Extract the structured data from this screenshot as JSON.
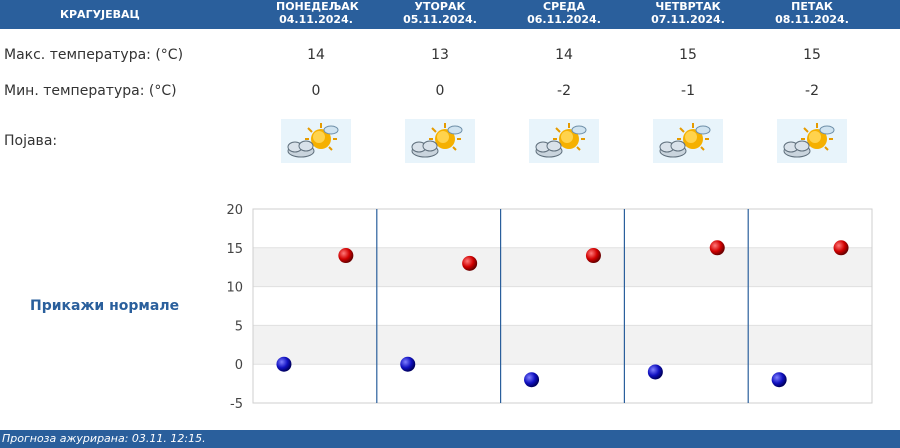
{
  "header": {
    "city": "КРАГУЈЕВАЦ",
    "days": [
      {
        "day": "ПОНЕДЕЉАК",
        "date": "04.11.2024."
      },
      {
        "day": "УТОРАК",
        "date": "05.11.2024."
      },
      {
        "day": "СРЕДА",
        "date": "06.11.2024."
      },
      {
        "day": "ЧЕТВРТАК",
        "date": "07.11.2024."
      },
      {
        "day": "ПЕТАК",
        "date": "08.11.2024."
      }
    ]
  },
  "rows": {
    "max_label": "Макс. температура: (°C)",
    "min_label": "Мин. температура: (°C)",
    "phen_label": "Појава:",
    "max_values": [
      "14",
      "13",
      "14",
      "15",
      "15"
    ],
    "min_values": [
      "0",
      "0",
      "-2",
      "-1",
      "-2"
    ],
    "icons": [
      "partly-cloudy-sun-icon",
      "partly-cloudy-sun-icon",
      "partly-cloudy-sun-icon",
      "partly-cloudy-sun-icon",
      "partly-cloudy-sun-icon"
    ]
  },
  "normals_link": "Прикажи нормале",
  "footer": "Прогноза ажурирана:  03.11.  12:15.",
  "colors": {
    "header_bg": "#2a5f9c",
    "max_marker": "#cc0000",
    "min_marker": "#1010b0",
    "band": "#f2f2f2"
  },
  "chart_data": {
    "type": "scatter",
    "categories": [
      "04.11.2024.",
      "05.11.2024.",
      "06.11.2024.",
      "07.11.2024.",
      "08.11.2024."
    ],
    "series": [
      {
        "values": [
          14,
          13,
          14,
          15,
          15
        ]
      },
      {
        "values": [
          0,
          0,
          -2,
          -1,
          -2
        ]
      }
    ],
    "ylim": [
      -5,
      20
    ],
    "yticks": [
      "20",
      "15",
      "10",
      "5",
      "0",
      "-5"
    ],
    "grid": "alternating horizontal bands"
  }
}
